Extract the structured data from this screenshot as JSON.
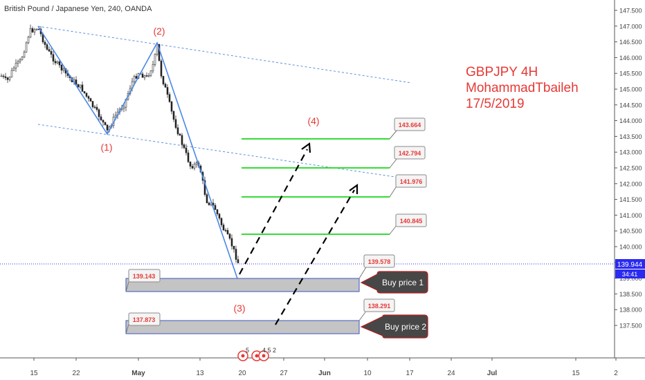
{
  "header": {
    "symbol_title": "British Pound / Japanese Yen, 240, OANDA"
  },
  "annotation": {
    "lines": [
      "GBPJPY 4H",
      "MohammadTbaileh",
      "17/5/2019"
    ]
  },
  "current_price": {
    "value": "139.944",
    "countdown": "34:41"
  },
  "wave_labels": [
    "(1)",
    "(2)",
    "(3)",
    "(4)"
  ],
  "target_levels": [
    "143.664",
    "142.794",
    "141.976",
    "140.845"
  ],
  "zones": [
    {
      "top_label": "139.578",
      "left_label": "139.143",
      "button": "Buy price 1"
    },
    {
      "top_label": "138.291",
      "left_label": "137.873",
      "button": "Buy price 2"
    }
  ],
  "bottom_icons": {
    "badge_a": "5",
    "badge_b": "4 5 2"
  },
  "colors": {
    "up_candle": "#3a3a3a",
    "down_candle": "#1a1a1a",
    "trendline": "#5b8fe0",
    "wave_line": "#4a86e8",
    "target_line": "#33dd33",
    "zone_fill": "#c4c4c4",
    "zone_border": "#3a56c0",
    "label_red": "#e53935",
    "price_line": "#2a2af0",
    "button_bg": "#474747",
    "button_border": "#b71c1c"
  },
  "chart_data": {
    "type": "candlestick",
    "title": "British Pound / Japanese Yen, 240, OANDA",
    "ylim": [
      137.25,
      147.5
    ],
    "y_ticks": [
      "147.500",
      "147.000",
      "146.500",
      "146.000",
      "145.500",
      "145.000",
      "144.500",
      "144.000",
      "143.500",
      "143.000",
      "142.500",
      "142.000",
      "141.500",
      "141.000",
      "140.500",
      "140.000",
      "139.500",
      "139.000",
      "138.500",
      "138.000",
      "137.500"
    ],
    "x_ticks": [
      "15",
      "22",
      "May",
      "13",
      "20",
      "27",
      "Jun",
      "10",
      "17",
      "24",
      "Jul",
      "15",
      "2"
    ],
    "wave_points": [
      {
        "label": "(1)",
        "price": 143.8
      },
      {
        "label": "(2)",
        "price": 146.55
      },
      {
        "label": "(3)",
        "price": 139.2
      },
      {
        "label": "(4)",
        "price": 143.7
      }
    ],
    "targets": [
      143.664,
      142.794,
      141.976,
      140.845
    ],
    "buy_zones": [
      {
        "name": "Buy price 1",
        "high": 139.578,
        "low": 139.143
      },
      {
        "name": "Buy price 2",
        "high": 138.291,
        "low": 137.873
      }
    ],
    "last_price": 139.944
  }
}
